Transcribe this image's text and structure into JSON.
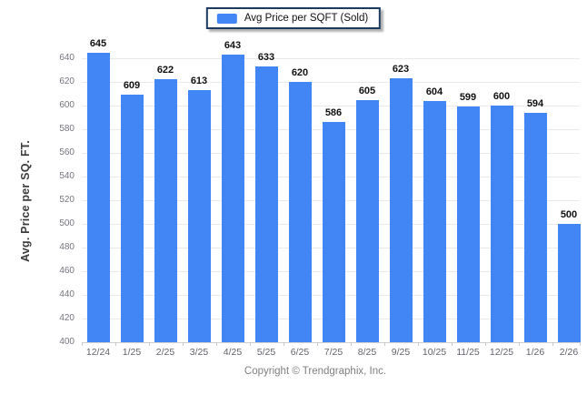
{
  "legend": {
    "label": "Avg Price per SQFT (Sold)"
  },
  "y_axis": {
    "title": "Avg. Price per SQ. FT."
  },
  "footer": {
    "copyright": "Copyright © Trendgraphix, Inc."
  },
  "colors": {
    "bar": "#4285F4",
    "legend_border": "#1B3A5E",
    "grid": "#EAEAEA",
    "baseline": "#CFCFCF",
    "tick_label": "#75757F",
    "xtick_label": "#62626C",
    "value_label": "#111111",
    "axis_title": "#3D3D3D",
    "footer_text": "#808080"
  },
  "chart_data": {
    "type": "bar",
    "title": "",
    "xlabel": "",
    "ylabel": "Avg. Price per SQ. FT.",
    "categories": [
      "12/24",
      "1/25",
      "2/25",
      "3/25",
      "4/25",
      "5/25",
      "6/25",
      "7/25",
      "8/25",
      "9/25",
      "10/25",
      "11/25",
      "12/25",
      "1/26",
      "2/26"
    ],
    "values": [
      645,
      609,
      622,
      613,
      643,
      633,
      620,
      586,
      605,
      623,
      604,
      599,
      600,
      594,
      500
    ],
    "series_name": "Avg Price per SQFT (Sold)",
    "data_labels": true,
    "ylim": [
      400,
      655
    ],
    "yticks": [
      400,
      420,
      440,
      460,
      480,
      500,
      520,
      540,
      560,
      580,
      600,
      620,
      640
    ],
    "grid": "horizontal",
    "legend_position": "top-center"
  }
}
